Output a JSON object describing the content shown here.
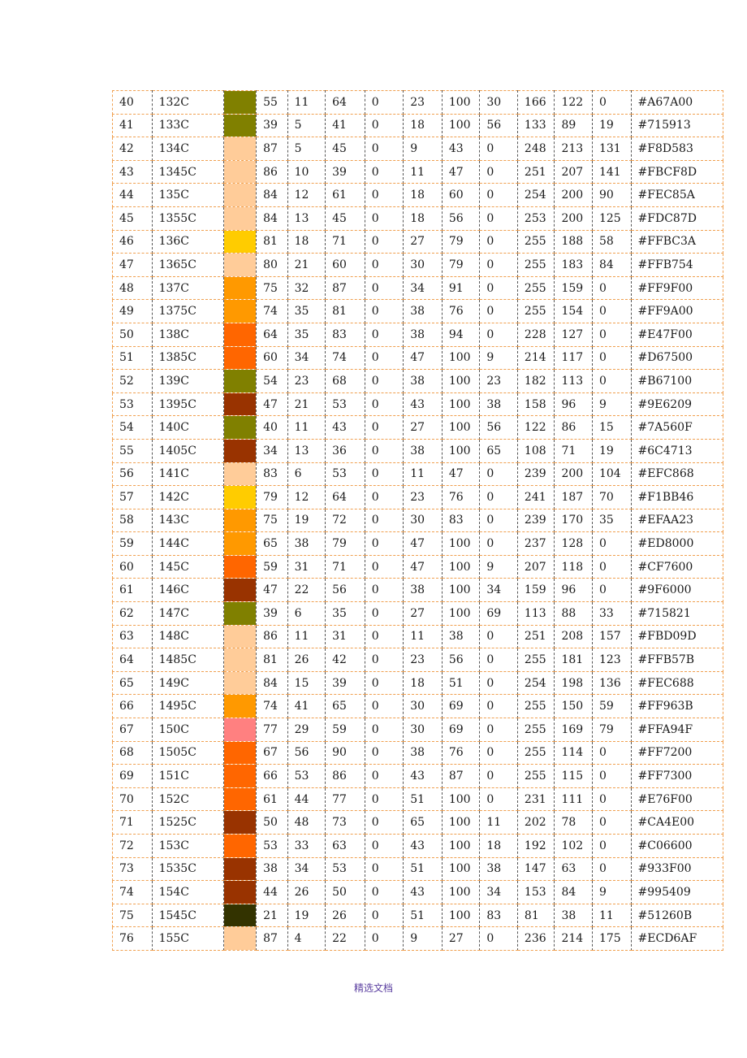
{
  "footer_text": "精选文档",
  "rows": [
    [
      "40",
      "132C",
      "#808000",
      "55",
      "11",
      "64",
      "0",
      "23",
      "100",
      "30",
      "166",
      "122",
      "0",
      "#A67A00"
    ],
    [
      "41",
      "133C",
      "#808000",
      "39",
      "5",
      "41",
      "0",
      "18",
      "100",
      "56",
      "133",
      "89",
      "19",
      "#715913"
    ],
    [
      "42",
      "134C",
      "#FFCC99",
      "87",
      "5",
      "45",
      "0",
      "9",
      "43",
      "0",
      "248",
      "213",
      "131",
      "#F8D583"
    ],
    [
      "43",
      "1345C",
      "#FFCC99",
      "86",
      "10",
      "39",
      "0",
      "11",
      "47",
      "0",
      "251",
      "207",
      "141",
      "#FBCF8D"
    ],
    [
      "44",
      "135C",
      "#FFCC99",
      "84",
      "12",
      "61",
      "0",
      "18",
      "60",
      "0",
      "254",
      "200",
      "90",
      "#FEC85A"
    ],
    [
      "45",
      "1355C",
      "#FFCC99",
      "84",
      "13",
      "45",
      "0",
      "18",
      "56",
      "0",
      "253",
      "200",
      "125",
      "#FDC87D"
    ],
    [
      "46",
      "136C",
      "#FFCC00",
      "81",
      "18",
      "71",
      "0",
      "27",
      "79",
      "0",
      "255",
      "188",
      "58",
      "#FFBC3A"
    ],
    [
      "47",
      "1365C",
      "#FFCC99",
      "80",
      "21",
      "60",
      "0",
      "30",
      "79",
      "0",
      "255",
      "183",
      "84",
      "#FFB754"
    ],
    [
      "48",
      "137C",
      "#FF9900",
      "75",
      "32",
      "87",
      "0",
      "34",
      "91",
      "0",
      "255",
      "159",
      "0",
      "#FF9F00"
    ],
    [
      "49",
      "1375C",
      "#FF9900",
      "74",
      "35",
      "81",
      "0",
      "38",
      "76",
      "0",
      "255",
      "154",
      "0",
      "#FF9A00"
    ],
    [
      "50",
      "138C",
      "#FF6600",
      "64",
      "35",
      "83",
      "0",
      "38",
      "94",
      "0",
      "228",
      "127",
      "0",
      "#E47F00"
    ],
    [
      "51",
      "1385C",
      "#FF6600",
      "60",
      "34",
      "74",
      "0",
      "47",
      "100",
      "9",
      "214",
      "117",
      "0",
      "#D67500"
    ],
    [
      "52",
      "139C",
      "#808000",
      "54",
      "23",
      "68",
      "0",
      "38",
      "100",
      "23",
      "182",
      "113",
      "0",
      "#B67100"
    ],
    [
      "53",
      "1395C",
      "#993300",
      "47",
      "21",
      "53",
      "0",
      "43",
      "100",
      "38",
      "158",
      "96",
      "9",
      "#9E6209"
    ],
    [
      "54",
      "140C",
      "#808000",
      "40",
      "11",
      "43",
      "0",
      "27",
      "100",
      "56",
      "122",
      "86",
      "15",
      "#7A560F"
    ],
    [
      "55",
      "1405C",
      "#993300",
      "34",
      "13",
      "36",
      "0",
      "38",
      "100",
      "65",
      "108",
      "71",
      "19",
      "#6C4713"
    ],
    [
      "56",
      "141C",
      "#FFCC99",
      "83",
      "6",
      "53",
      "0",
      "11",
      "47",
      "0",
      "239",
      "200",
      "104",
      "#EFC868"
    ],
    [
      "57",
      "142C",
      "#FFCC00",
      "79",
      "12",
      "64",
      "0",
      "23",
      "76",
      "0",
      "241",
      "187",
      "70",
      "#F1BB46"
    ],
    [
      "58",
      "143C",
      "#FF9900",
      "75",
      "19",
      "72",
      "0",
      "30",
      "83",
      "0",
      "239",
      "170",
      "35",
      "#EFAA23"
    ],
    [
      "59",
      "144C",
      "#FF9900",
      "65",
      "38",
      "79",
      "0",
      "47",
      "100",
      "0",
      "237",
      "128",
      "0",
      "#ED8000"
    ],
    [
      "60",
      "145C",
      "#FF6600",
      "59",
      "31",
      "71",
      "0",
      "47",
      "100",
      "9",
      "207",
      "118",
      "0",
      "#CF7600"
    ],
    [
      "61",
      "146C",
      "#993300",
      "47",
      "22",
      "56",
      "0",
      "38",
      "100",
      "34",
      "159",
      "96",
      "0",
      "#9F6000"
    ],
    [
      "62",
      "147C",
      "#808000",
      "39",
      "6",
      "35",
      "0",
      "27",
      "100",
      "69",
      "113",
      "88",
      "33",
      "#715821"
    ],
    [
      "63",
      "148C",
      "#FFCC99",
      "86",
      "11",
      "31",
      "0",
      "11",
      "38",
      "0",
      "251",
      "208",
      "157",
      "#FBD09D"
    ],
    [
      "64",
      "1485C",
      "#FFCC99",
      "81",
      "26",
      "42",
      "0",
      "23",
      "56",
      "0",
      "255",
      "181",
      "123",
      "#FFB57B"
    ],
    [
      "65",
      "149C",
      "#FFCC99",
      "84",
      "15",
      "39",
      "0",
      "18",
      "51",
      "0",
      "254",
      "198",
      "136",
      "#FEC688"
    ],
    [
      "66",
      "1495C",
      "#FF9900",
      "74",
      "41",
      "65",
      "0",
      "30",
      "69",
      "0",
      "255",
      "150",
      "59",
      "#FF963B"
    ],
    [
      "67",
      "150C",
      "#FF8080",
      "77",
      "29",
      "59",
      "0",
      "30",
      "69",
      "0",
      "255",
      "169",
      "79",
      "#FFA94F"
    ],
    [
      "68",
      "1505C",
      "#FF6600",
      "67",
      "56",
      "90",
      "0",
      "38",
      "76",
      "0",
      "255",
      "114",
      "0",
      "#FF7200"
    ],
    [
      "69",
      "151C",
      "#FF6600",
      "66",
      "53",
      "86",
      "0",
      "43",
      "87",
      "0",
      "255",
      "115",
      "0",
      "#FF7300"
    ],
    [
      "70",
      "152C",
      "#FF6600",
      "61",
      "44",
      "77",
      "0",
      "51",
      "100",
      "0",
      "231",
      "111",
      "0",
      "#E76F00"
    ],
    [
      "71",
      "1525C",
      "#993300",
      "50",
      "48",
      "73",
      "0",
      "65",
      "100",
      "11",
      "202",
      "78",
      "0",
      "#CA4E00"
    ],
    [
      "72",
      "153C",
      "#FF6600",
      "53",
      "33",
      "63",
      "0",
      "43",
      "100",
      "18",
      "192",
      "102",
      "0",
      "#C06600"
    ],
    [
      "73",
      "1535C",
      "#993300",
      "38",
      "34",
      "53",
      "0",
      "51",
      "100",
      "38",
      "147",
      "63",
      "0",
      "#933F00"
    ],
    [
      "74",
      "154C",
      "#993300",
      "44",
      "26",
      "50",
      "0",
      "43",
      "100",
      "34",
      "153",
      "84",
      "9",
      "#995409"
    ],
    [
      "75",
      "1545C",
      "#333300",
      "21",
      "19",
      "26",
      "0",
      "51",
      "100",
      "83",
      "81",
      "38",
      "11",
      "#51260B"
    ],
    [
      "76",
      "155C",
      "#FFCC99",
      "87",
      "4",
      "22",
      "0",
      "9",
      "27",
      "0",
      "236",
      "214",
      "175",
      "#ECD6AF"
    ]
  ]
}
